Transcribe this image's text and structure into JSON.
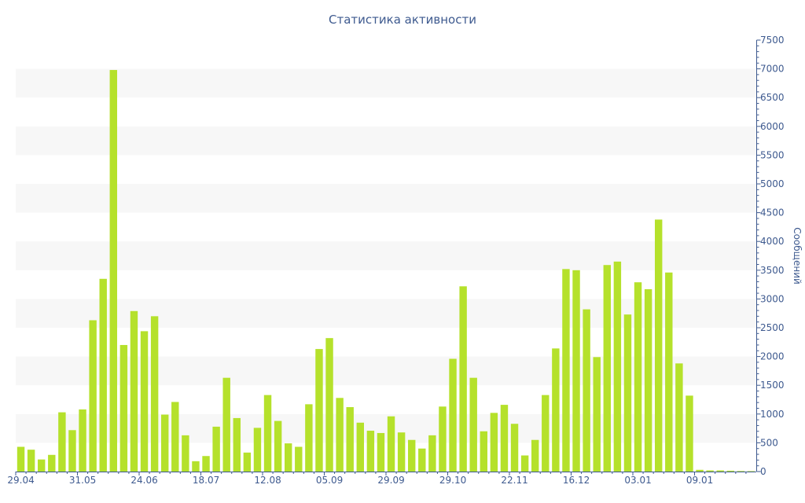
{
  "chart_data": {
    "type": "bar",
    "title": "Статистика активности",
    "ylabel": "Сообщений",
    "xlabel": "",
    "ylim": [
      0,
      7500
    ],
    "y_axis_side": "right",
    "yticks": [
      0,
      500,
      1000,
      1500,
      2000,
      2500,
      3000,
      3500,
      4000,
      4500,
      5000,
      5500,
      6000,
      6500,
      7000,
      7500
    ],
    "xtick_labels": [
      {
        "index": 0,
        "label": "29.04"
      },
      {
        "index": 6,
        "label": "31.05"
      },
      {
        "index": 12,
        "label": "24.06"
      },
      {
        "index": 18,
        "label": "18.07"
      },
      {
        "index": 24,
        "label": "12.08"
      },
      {
        "index": 30,
        "label": "05.09"
      },
      {
        "index": 36,
        "label": "29.09"
      },
      {
        "index": 42,
        "label": "29.10"
      },
      {
        "index": 48,
        "label": "22.11"
      },
      {
        "index": 54,
        "label": "16.12"
      },
      {
        "index": 60,
        "label": "03.01"
      },
      {
        "index": 66,
        "label": "09.01"
      }
    ],
    "values": [
      430,
      380,
      210,
      290,
      1030,
      720,
      1080,
      2630,
      3350,
      6980,
      2200,
      2790,
      2440,
      2700,
      990,
      1210,
      630,
      180,
      270,
      780,
      1630,
      930,
      330,
      760,
      1330,
      880,
      490,
      430,
      1170,
      2130,
      2320,
      1280,
      1120,
      850,
      710,
      670,
      960,
      680,
      550,
      400,
      630,
      1130,
      1960,
      3220,
      1630,
      700,
      1020,
      1160,
      830,
      280,
      550,
      1330,
      2140,
      3520,
      3500,
      2820,
      1990,
      3590,
      3650,
      2730,
      3290,
      3170,
      4380,
      3460,
      1880,
      1320,
      30,
      20,
      20,
      15,
      10,
      8
    ],
    "bar_color": "#b5e12b",
    "band_color": "#f7f7f7",
    "axis_color": "#3e5a8f",
    "grid": "alternating horizontal bands"
  }
}
